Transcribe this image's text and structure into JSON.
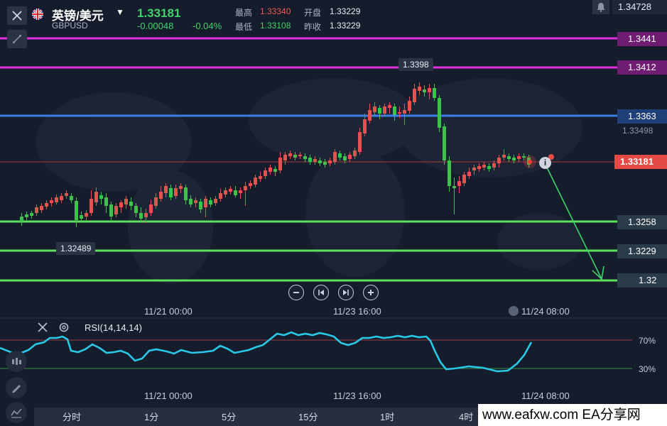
{
  "header": {
    "symbol_name": "英镑/美元",
    "symbol_code": "GBPUSD",
    "last_price": "1.33181",
    "change": "-0.00048",
    "change_pct": "-0.04%",
    "high_label": "最高",
    "high_value": "1.33340",
    "open_label": "开盘",
    "open_value": "1.33229",
    "low_label": "最低",
    "low_value": "1.33108",
    "prev_close_label": "昨收",
    "prev_close_value": "1.33229",
    "top_axis_price": "1.34728",
    "icons": {
      "close": "close-icon",
      "dropdown": "chevron-down-icon",
      "bell": "bell-icon",
      "draw_tool": "draw-tool-icon"
    }
  },
  "price_levels": {
    "l1": "1.3441",
    "l2": "1.3412",
    "l3": "1.3363",
    "axis_tick": "1.33498",
    "current": "1.33181",
    "l4": "1.3258",
    "l5": "1.3229",
    "l6": "1.32"
  },
  "annotations": {
    "peak_high": "1.3398",
    "trough_low": "1.32489"
  },
  "colors": {
    "magenta_line": "#e22ee0",
    "blue_line": "#3a7ee8",
    "green_line": "#5de15a",
    "up_candle": "#e2524f",
    "down_candle": "#3fc24a",
    "rsi_line": "#29c8e6",
    "current_price_tag": "#e64a45"
  },
  "time_axis": {
    "t1": "11/21 00:00",
    "t2": "11/23 16:00",
    "t3": "11/24 08:00"
  },
  "nav_controls": {
    "zoom_out": "zoom-out-icon",
    "prev": "step-back-icon",
    "next": "step-forward-icon",
    "zoom_in": "zoom-in-icon"
  },
  "rsi": {
    "title": "RSI(14,14,14)",
    "level_high": "70%",
    "level_low": "30%"
  },
  "timeframes": {
    "items": [
      "分时",
      "1分",
      "5分",
      "15分",
      "1时",
      "4时"
    ]
  },
  "watermark": "www.eafxw.com  EA分享网"
}
